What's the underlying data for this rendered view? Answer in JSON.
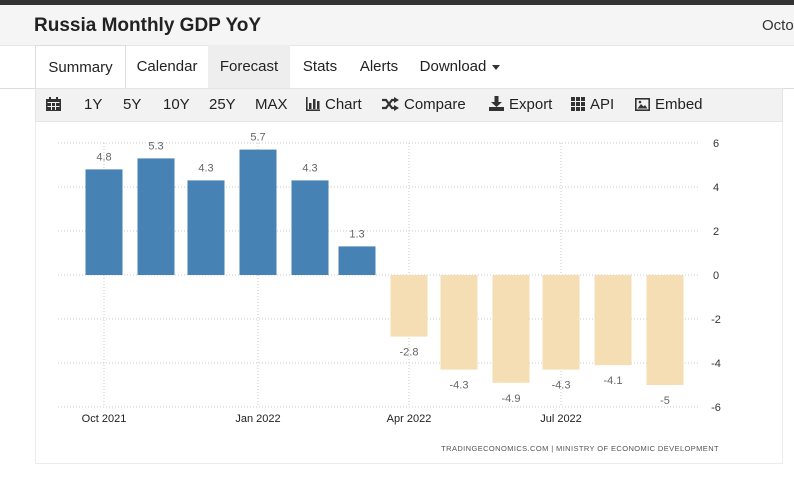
{
  "header": {
    "title": "Russia Monthly GDP YoY",
    "date_partial": "Octo"
  },
  "tabs": [
    "Summary",
    "Calendar",
    "Forecast",
    "Stats",
    "Alerts",
    "Download"
  ],
  "toolbar": {
    "ranges": [
      "1Y",
      "5Y",
      "10Y",
      "25Y",
      "MAX"
    ],
    "chart": "Chart",
    "compare": "Compare",
    "export": "Export",
    "api": "API",
    "embed": "Embed"
  },
  "colors": {
    "positive": "#4682b4",
    "negative": "#f5deb3"
  },
  "chart_data": {
    "type": "bar",
    "categories": [
      "Oct 2021",
      "Nov 2021",
      "Dec 2021",
      "Jan 2022",
      "Feb 2022",
      "Mar 2022",
      "Apr 2022",
      "May 2022",
      "Jun 2022",
      "Jul 2022",
      "Aug 2022",
      "Sep 2022"
    ],
    "values": [
      4.8,
      5.3,
      4.3,
      5.7,
      4.3,
      1.3,
      -2.8,
      -4.3,
      -4.9,
      -4.3,
      -4.1,
      -5
    ],
    "data_labels": [
      "4.8",
      "5.3",
      "4.3",
      "5.7",
      "4.3",
      "1.3",
      "-2.8",
      "-4.3",
      "-4.9",
      "-4.3",
      "-4.1",
      "-5"
    ],
    "x_tick_labels": [
      "Oct 2021",
      "Jan 2022",
      "Apr 2022",
      "Jul 2022"
    ],
    "y_ticks": [
      "6",
      "4",
      "2",
      "0",
      "-2",
      "-4",
      "-6"
    ],
    "ylim": [
      -6,
      6
    ],
    "grid": true,
    "source": "TRADINGECONOMICS.COM  |  MINISTRY OF ECONOMIC DEVELOPMENT"
  }
}
